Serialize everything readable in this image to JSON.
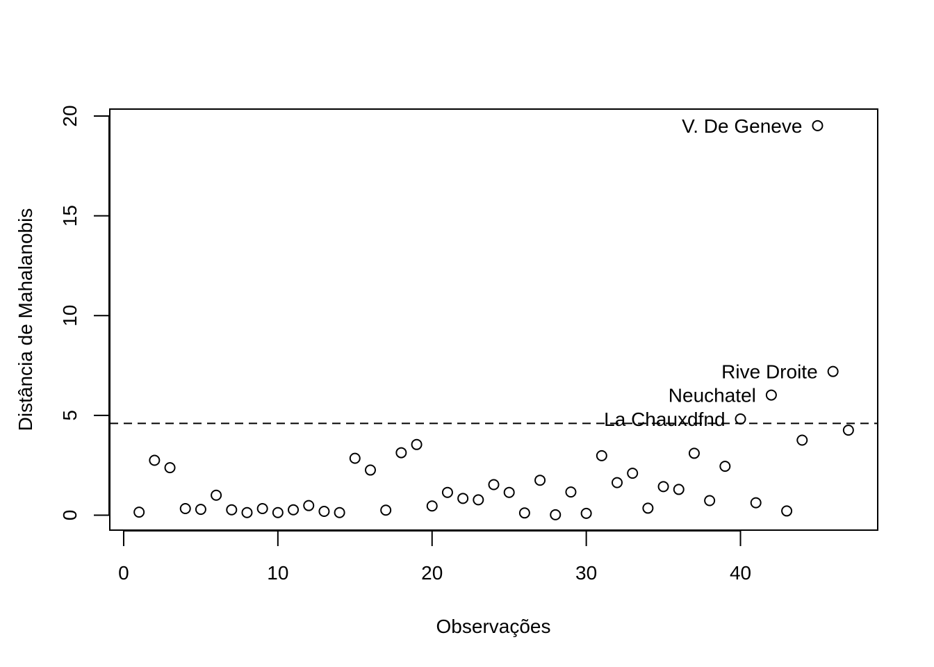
{
  "chart_data": {
    "type": "scatter",
    "title": "",
    "xlabel": "Observações",
    "ylabel": "Distância de Mahalanobis",
    "xlim": [
      -0.9,
      48.9
    ],
    "ylim": [
      -0.75,
      20.35
    ],
    "xticks": [
      0,
      10,
      20,
      30,
      40
    ],
    "yticks": [
      0,
      5,
      10,
      15,
      20
    ],
    "grid": false,
    "legend": "none",
    "threshold": 4.6,
    "threshold_style": "dashed",
    "points": [
      {
        "x": 1,
        "y": 0.15
      },
      {
        "x": 2,
        "y": 2.75
      },
      {
        "x": 3,
        "y": 2.38
      },
      {
        "x": 4,
        "y": 0.33
      },
      {
        "x": 5,
        "y": 0.29
      },
      {
        "x": 6,
        "y": 1.0
      },
      {
        "x": 7,
        "y": 0.27
      },
      {
        "x": 8,
        "y": 0.13
      },
      {
        "x": 9,
        "y": 0.33
      },
      {
        "x": 10,
        "y": 0.13
      },
      {
        "x": 11,
        "y": 0.27
      },
      {
        "x": 12,
        "y": 0.48
      },
      {
        "x": 13,
        "y": 0.19
      },
      {
        "x": 14,
        "y": 0.13
      },
      {
        "x": 15,
        "y": 2.85
      },
      {
        "x": 16,
        "y": 2.26
      },
      {
        "x": 17,
        "y": 0.25
      },
      {
        "x": 18,
        "y": 3.13
      },
      {
        "x": 19,
        "y": 3.54
      },
      {
        "x": 20,
        "y": 0.46
      },
      {
        "x": 21,
        "y": 1.14
      },
      {
        "x": 22,
        "y": 0.84
      },
      {
        "x": 23,
        "y": 0.77
      },
      {
        "x": 24,
        "y": 1.53
      },
      {
        "x": 25,
        "y": 1.14
      },
      {
        "x": 26,
        "y": 0.11
      },
      {
        "x": 27,
        "y": 1.75
      },
      {
        "x": 28,
        "y": 0.02
      },
      {
        "x": 29,
        "y": 1.16
      },
      {
        "x": 30,
        "y": 0.09
      },
      {
        "x": 31,
        "y": 2.98
      },
      {
        "x": 32,
        "y": 1.63
      },
      {
        "x": 33,
        "y": 2.1
      },
      {
        "x": 34,
        "y": 0.35
      },
      {
        "x": 35,
        "y": 1.43
      },
      {
        "x": 36,
        "y": 1.29
      },
      {
        "x": 37,
        "y": 3.1
      },
      {
        "x": 38,
        "y": 0.73
      },
      {
        "x": 39,
        "y": 2.45
      },
      {
        "x": 40,
        "y": 4.82
      },
      {
        "x": 41,
        "y": 0.62
      },
      {
        "x": 42,
        "y": 6.02
      },
      {
        "x": 43,
        "y": 0.21
      },
      {
        "x": 44,
        "y": 3.76
      },
      {
        "x": 45,
        "y": 19.52
      },
      {
        "x": 46,
        "y": 7.2
      },
      {
        "x": 47,
        "y": 4.26
      }
    ],
    "annotations": [
      {
        "x": 45,
        "y": 19.52,
        "text": "V. De Geneve"
      },
      {
        "x": 46,
        "y": 7.2,
        "text": "Rive Droite"
      },
      {
        "x": 42,
        "y": 6.02,
        "text": "Neuchatel"
      },
      {
        "x": 40,
        "y": 4.82,
        "text": "La Chauxdfnd"
      }
    ]
  }
}
